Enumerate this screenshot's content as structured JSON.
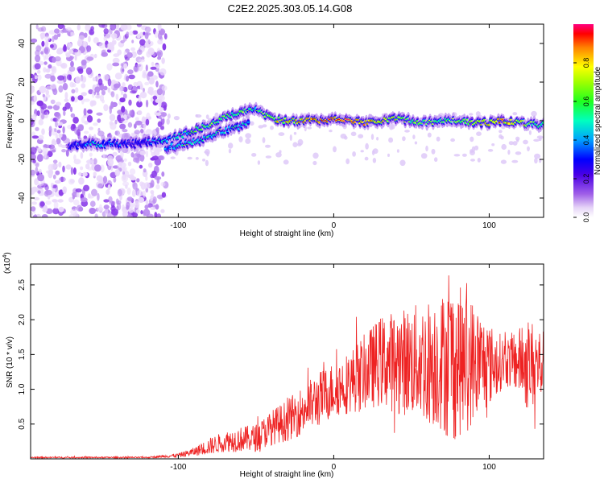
{
  "title": "C2E2.2025.303.05.14.G08",
  "chart_data": [
    {
      "type": "heatmap",
      "xlabel": "Height of straight line (km)",
      "ylabel": "Frequency (Hz)",
      "xlim": [
        -195,
        135
      ],
      "ylim": [
        -50,
        50
      ],
      "x_ticks": [
        -100,
        0,
        100
      ],
      "x_tick_labels": [
        "-100",
        "0",
        "100"
      ],
      "y_ticks": [
        -40,
        -20,
        0,
        20,
        40
      ],
      "y_tick_labels": [
        "-40",
        "-20",
        "0",
        "20",
        "40"
      ],
      "colorbar": {
        "label": "Normalized spectral amplitude",
        "range": [
          0,
          1
        ],
        "ticks": [
          0.0,
          0.2,
          0.4,
          0.6,
          0.8
        ],
        "tick_labels": [
          "0.0",
          "0.2",
          "0.4",
          "0.6",
          "0.8"
        ],
        "colors": [
          "#ffffff",
          "#e6d5f7",
          "#8a3ce0",
          "#3a00e6",
          "#0000ff",
          "#00c8ff",
          "#00ff80",
          "#80ff00",
          "#ffff00",
          "#ff8000",
          "#ff0000",
          "#ff0090"
        ]
      },
      "noise_region_x": [
        -195,
        -108
      ],
      "ridge": [
        {
          "x": -170,
          "y": -13,
          "amp": 0.25
        },
        {
          "x": -160,
          "y": -12,
          "amp": 0.42
        },
        {
          "x": -150,
          "y": -12,
          "amp": 0.45
        },
        {
          "x": -140,
          "y": -12,
          "amp": 0.4
        },
        {
          "x": -130,
          "y": -12,
          "amp": 0.25
        },
        {
          "x": -110,
          "y": -10,
          "amp": 0.45
        },
        {
          "x": -100,
          "y": -8,
          "amp": 0.55
        },
        {
          "x": -90,
          "y": -5,
          "amp": 0.55
        },
        {
          "x": -80,
          "y": -2,
          "amp": 0.6
        },
        {
          "x": -70,
          "y": 2,
          "amp": 0.6
        },
        {
          "x": -60,
          "y": 4,
          "amp": 0.6
        },
        {
          "x": -50,
          "y": 6,
          "amp": 0.55
        },
        {
          "x": -40,
          "y": 1,
          "amp": 0.65
        },
        {
          "x": -30,
          "y": 0,
          "amp": 0.75
        },
        {
          "x": -20,
          "y": 0,
          "amp": 0.8
        },
        {
          "x": -10,
          "y": 0,
          "amp": 0.85
        },
        {
          "x": 0,
          "y": 1,
          "amp": 0.9
        },
        {
          "x": 10,
          "y": 0,
          "amp": 0.85
        },
        {
          "x": 20,
          "y": -1,
          "amp": 0.8
        },
        {
          "x": 30,
          "y": 0,
          "amp": 0.75
        },
        {
          "x": 40,
          "y": 1,
          "amp": 0.7
        },
        {
          "x": 50,
          "y": 0,
          "amp": 0.65
        },
        {
          "x": 60,
          "y": -1,
          "amp": 0.65
        },
        {
          "x": 70,
          "y": 0,
          "amp": 0.6
        },
        {
          "x": 80,
          "y": 0,
          "amp": 0.6
        },
        {
          "x": 90,
          "y": -1,
          "amp": 0.7
        },
        {
          "x": 100,
          "y": -1,
          "amp": 0.75
        },
        {
          "x": 110,
          "y": 0,
          "amp": 0.8
        },
        {
          "x": 120,
          "y": -1,
          "amp": 0.7
        },
        {
          "x": 130,
          "y": -2,
          "amp": 0.6
        },
        {
          "x": 135,
          "y": -2,
          "amp": 0.55
        }
      ],
      "secondary_ridge": [
        {
          "x": -108,
          "y": -14,
          "amp": 0.45
        },
        {
          "x": -95,
          "y": -12,
          "amp": 0.5
        },
        {
          "x": -85,
          "y": -10,
          "amp": 0.5
        },
        {
          "x": -75,
          "y": -6,
          "amp": 0.5
        },
        {
          "x": -65,
          "y": -4,
          "amp": 0.5
        },
        {
          "x": -55,
          "y": -2,
          "amp": 0.45
        }
      ]
    },
    {
      "type": "line",
      "xlabel": "Height of straight line (km)",
      "ylabel": "SNR (10 * v/v)",
      "scale_label": "(x10",
      "scale_exponent": "4",
      "scale_close": ")",
      "xlim": [
        -195,
        135
      ],
      "ylim": [
        0,
        2.8
      ],
      "x_ticks": [
        -100,
        0,
        100
      ],
      "x_tick_labels": [
        "-100",
        "0",
        "100"
      ],
      "y_ticks": [
        0.5,
        1.0,
        1.5,
        2.0,
        2.5
      ],
      "y_tick_labels": [
        "0.5",
        "1.0",
        "1.5",
        "2.0",
        "2.5"
      ],
      "line_color": "#ee2222",
      "envelope": {
        "x": [
          -195,
          -120,
          -100,
          -90,
          -80,
          -70,
          -60,
          -50,
          -40,
          -30,
          -20,
          -10,
          0,
          10,
          20,
          30,
          40,
          50,
          60,
          70,
          75,
          80,
          90,
          100,
          110,
          120,
          125,
          130,
          135
        ],
        "center": [
          0.02,
          0.02,
          0.05,
          0.1,
          0.18,
          0.25,
          0.28,
          0.3,
          0.45,
          0.55,
          0.7,
          0.85,
          1.0,
          1.1,
          1.25,
          1.4,
          1.4,
          1.4,
          1.4,
          1.4,
          1.4,
          1.4,
          1.4,
          1.35,
          1.4,
          1.4,
          1.35,
          1.35,
          1.35
        ],
        "spread": [
          0.01,
          0.01,
          0.03,
          0.06,
          0.12,
          0.15,
          0.18,
          0.2,
          0.25,
          0.3,
          0.35,
          0.4,
          0.4,
          0.45,
          0.55,
          0.65,
          0.75,
          0.8,
          0.9,
          1.0,
          1.2,
          1.1,
          0.9,
          0.6,
          0.35,
          0.5,
          0.7,
          0.6,
          0.5
        ]
      }
    }
  ]
}
